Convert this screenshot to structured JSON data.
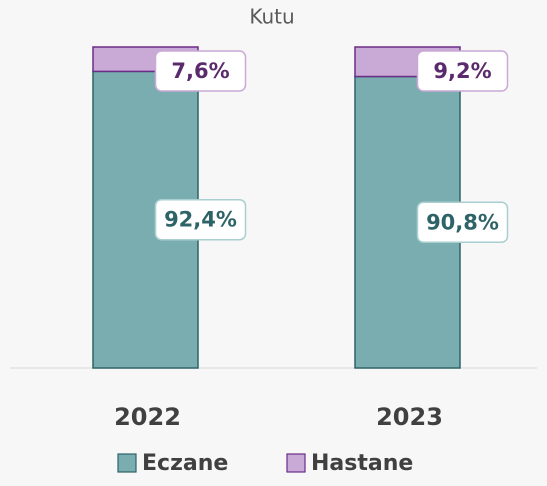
{
  "chart_data": {
    "type": "stacked_bar",
    "title": "Kutu",
    "categories": [
      "2022",
      "2023"
    ],
    "series": [
      {
        "name": "Eczane",
        "color": "#7aadb0",
        "values": [
          92.4,
          90.8
        ],
        "value_labels": [
          "92,4%",
          "90,8%"
        ]
      },
      {
        "name": "Hastane",
        "color": "#c9a9d6",
        "values": [
          7.6,
          9.2
        ],
        "value_labels": [
          "7,6%",
          "9,2%"
        ]
      }
    ],
    "ylim": [
      0,
      100
    ]
  }
}
